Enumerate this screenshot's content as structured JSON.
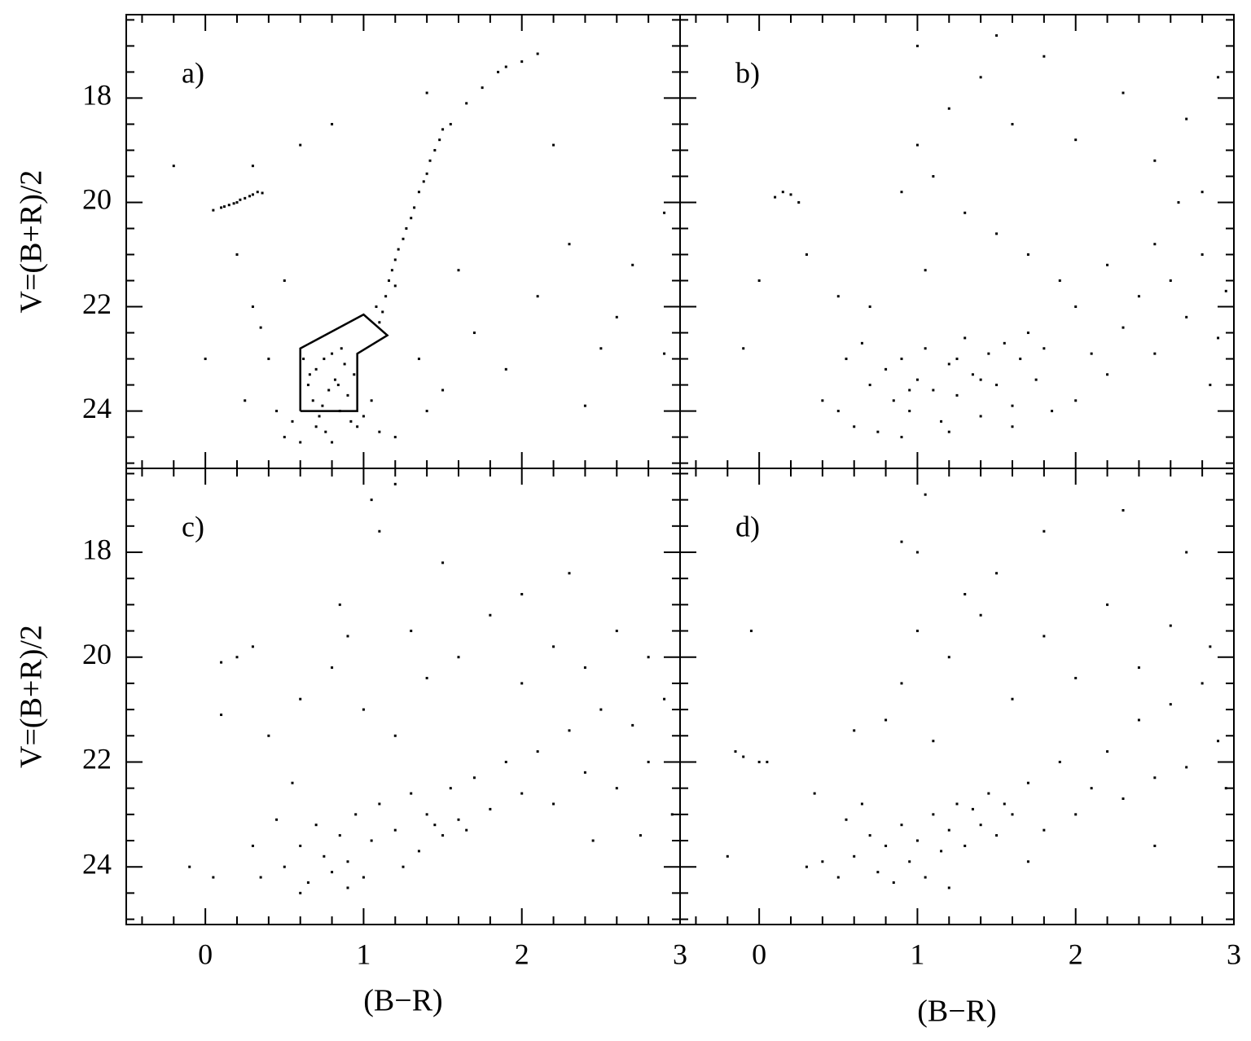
{
  "chart_data": [
    {
      "type": "scatter",
      "panel_label": "a)",
      "ylabel": "V=(B+R)/2",
      "xlim": [
        -0.5,
        3
      ],
      "ylim": [
        25.1,
        16.4
      ],
      "xticks": [
        0,
        1,
        2,
        3
      ],
      "yticks": [
        18,
        20,
        22,
        24
      ],
      "xminorticks": [
        -0.4,
        -0.2,
        0.2,
        0.4,
        0.6,
        0.8,
        1.2,
        1.4,
        1.6,
        1.8,
        2.2,
        2.4,
        2.6,
        2.8
      ],
      "yminorticks": [
        16.5,
        17,
        17.5,
        18.5,
        19,
        19.5,
        20.5,
        21,
        21.5,
        22.5,
        23,
        23.5,
        24.5,
        25
      ],
      "xtick_labels": false,
      "ytick_labels": true,
      "region": {
        "x": [
          0.6,
          0.6,
          1.0,
          1.15,
          0.96,
          0.96,
          0.6
        ],
        "y": [
          24.0,
          22.8,
          22.15,
          22.55,
          22.9,
          24.0,
          24.0
        ]
      },
      "series": [
        {
          "color": "#000000",
          "x": [
            0.05,
            0.1,
            0.15,
            0.2,
            0.22,
            0.25,
            0.28,
            0.3,
            0.33,
            0.36,
            0.12,
            0.18,
            1.12,
            1.14,
            1.16,
            1.18,
            1.2,
            1.22,
            1.25,
            1.27,
            1.3,
            1.32,
            1.35,
            1.38,
            1.4,
            1.42,
            1.45,
            1.48,
            1.5,
            1.55,
            1.65,
            1.75,
            1.85,
            1.9,
            2.0,
            2.1,
            1.1,
            1.08,
            1.2,
            0.62,
            0.65,
            0.68,
            0.7,
            0.72,
            0.75,
            0.78,
            0.8,
            0.82,
            0.85,
            0.88,
            0.9,
            0.92,
            0.7,
            0.76,
            0.66,
            0.74,
            0.84,
            0.86,
            0.94,
            0.96,
            1.0,
            1.05,
            0.55,
            0.5,
            0.45,
            1.1,
            1.2,
            0.6,
            0.8,
            0.2,
            0.3,
            0.35,
            0.4,
            0.25,
            0.0,
            -0.2,
            0.3,
            0.6,
            0.8,
            1.35,
            1.5,
            1.7,
            1.9,
            2.1,
            2.3,
            2.5,
            2.7,
            2.9,
            2.4,
            1.4,
            2.2,
            0.5,
            1.6,
            2.6,
            2.9,
            1.4
          ],
          "y": [
            20.15,
            20.1,
            20.05,
            20.0,
            19.95,
            19.92,
            19.88,
            19.85,
            19.8,
            19.82,
            20.08,
            20.02,
            22.1,
            21.8,
            21.5,
            21.3,
            21.1,
            20.9,
            20.7,
            20.5,
            20.3,
            20.1,
            19.8,
            19.6,
            19.45,
            19.2,
            19.0,
            18.8,
            18.6,
            18.5,
            18.1,
            17.8,
            17.5,
            17.4,
            17.3,
            17.15,
            22.3,
            22.0,
            21.6,
            23.0,
            23.5,
            23.8,
            23.2,
            24.1,
            23.0,
            23.6,
            22.9,
            23.4,
            24.0,
            23.1,
            23.7,
            24.2,
            24.3,
            24.4,
            23.3,
            23.9,
            23.5,
            22.8,
            23.3,
            24.3,
            24.1,
            23.8,
            24.2,
            24.5,
            24.0,
            24.4,
            24.5,
            24.6,
            24.6,
            21.0,
            22.0,
            22.4,
            23.0,
            23.8,
            23.0,
            19.3,
            19.3,
            18.9,
            18.5,
            23.0,
            23.6,
            22.5,
            23.2,
            21.8,
            20.8,
            22.8,
            21.2,
            20.2,
            23.9,
            17.9,
            18.9,
            21.5,
            21.3,
            22.2,
            22.9,
            24.0
          ]
        }
      ]
    },
    {
      "type": "scatter",
      "panel_label": "b)",
      "xlim": [
        -0.5,
        3
      ],
      "ylim": [
        25.1,
        16.4
      ],
      "xticks": [
        0,
        1,
        2,
        3
      ],
      "yticks": [
        18,
        20,
        22,
        24
      ],
      "xminorticks": [
        -0.4,
        -0.2,
        0.2,
        0.4,
        0.6,
        0.8,
        1.2,
        1.4,
        1.6,
        1.8,
        2.2,
        2.4,
        2.6,
        2.8
      ],
      "yminorticks": [
        16.5,
        17,
        17.5,
        18.5,
        19,
        19.5,
        20.5,
        21,
        21.5,
        22.5,
        23,
        23.5,
        24.5,
        25
      ],
      "xtick_labels": false,
      "ytick_labels": false,
      "series": [
        {
          "color": "#000000",
          "x": [
            0.7,
            0.8,
            0.85,
            0.9,
            0.95,
            1.0,
            1.05,
            1.1,
            1.15,
            1.2,
            1.25,
            1.3,
            1.35,
            1.4,
            1.45,
            1.5,
            1.55,
            1.6,
            1.65,
            1.7,
            1.75,
            1.8,
            1.85,
            0.6,
            0.5,
            0.4,
            0.55,
            0.65,
            0.75,
            0.9,
            1.2,
            1.6,
            2.0,
            2.1,
            2.2,
            2.3,
            2.4,
            2.5,
            2.6,
            2.7,
            2.8,
            2.9,
            2.95,
            2.65,
            2.8,
            2.5,
            2.2,
            2.0,
            1.9,
            1.7,
            1.5,
            1.3,
            1.1,
            1.0,
            0.9,
            1.2,
            1.4,
            1.6,
            1.8,
            2.0,
            2.3,
            2.5,
            2.7,
            2.9,
            1.0,
            1.5,
            0.1,
            0.15,
            0.2,
            0.25,
            0.0,
            -0.1,
            0.3,
            0.5,
            0.7,
            1.05,
            2.85,
            0.95,
            1.25,
            1.4
          ],
          "y": [
            23.5,
            23.2,
            23.8,
            23.0,
            24.0,
            23.4,
            22.8,
            23.6,
            24.2,
            23.1,
            23.7,
            22.6,
            23.3,
            24.1,
            22.9,
            23.5,
            22.7,
            23.9,
            23.0,
            22.5,
            23.4,
            22.8,
            24.0,
            24.3,
            24.0,
            23.8,
            23.0,
            22.7,
            24.4,
            24.5,
            24.4,
            24.3,
            23.8,
            22.9,
            23.3,
            22.4,
            21.8,
            22.9,
            21.5,
            22.2,
            21.0,
            22.6,
            21.7,
            20.0,
            19.8,
            20.8,
            21.2,
            22.0,
            21.5,
            21.0,
            20.6,
            20.2,
            19.5,
            18.9,
            19.8,
            18.2,
            17.6,
            18.5,
            17.2,
            18.8,
            17.9,
            19.2,
            18.4,
            17.6,
            17.0,
            16.8,
            19.9,
            19.8,
            19.85,
            20.0,
            21.5,
            22.8,
            21.0,
            21.8,
            22.0,
            21.3,
            23.5,
            23.6,
            23.0,
            23.4
          ]
        }
      ]
    },
    {
      "type": "scatter",
      "panel_label": "c)",
      "ylabel": "V=(B+R)/2",
      "xlabel": "(B−R)",
      "xlim": [
        -0.5,
        3
      ],
      "ylim": [
        25.1,
        16.4
      ],
      "xticks": [
        0,
        1,
        2,
        3
      ],
      "yticks": [
        18,
        20,
        22,
        24
      ],
      "xminorticks": [
        -0.4,
        -0.2,
        0.2,
        0.4,
        0.6,
        0.8,
        1.2,
        1.4,
        1.6,
        1.8,
        2.2,
        2.4,
        2.6,
        2.8
      ],
      "yminorticks": [
        16.5,
        17,
        17.5,
        18.5,
        19,
        19.5,
        20.5,
        21,
        21.5,
        22.5,
        23,
        23.5,
        24.5,
        25
      ],
      "xtick_labels": true,
      "ytick_labels": true,
      "series": [
        {
          "color": "#000000",
          "x": [
            0.5,
            0.6,
            0.65,
            0.7,
            0.75,
            0.8,
            0.85,
            0.9,
            0.95,
            1.0,
            1.05,
            1.1,
            1.2,
            1.3,
            1.35,
            1.4,
            1.5,
            1.55,
            1.6,
            1.7,
            1.8,
            1.9,
            2.0,
            2.1,
            2.2,
            2.3,
            2.4,
            2.5,
            2.6,
            2.7,
            2.8,
            2.9,
            2.95,
            2.75,
            2.45,
            0.35,
            0.3,
            0.45,
            0.55,
            0.4,
            0.6,
            0.8,
            0.9,
            1.0,
            1.2,
            1.4,
            1.3,
            1.6,
            1.8,
            2.0,
            2.2,
            2.4,
            2.6,
            2.8,
            2.0,
            2.3,
            1.5,
            1.1,
            1.05,
            1.2,
            0.85,
            0.1,
            0.2,
            0.3,
            0.05,
            -0.1,
            0.1,
            0.6,
            0.9,
            1.25,
            1.65,
            1.45
          ],
          "y": [
            24.0,
            23.6,
            24.3,
            23.2,
            23.8,
            24.1,
            23.4,
            23.9,
            23.0,
            24.2,
            23.5,
            22.8,
            23.3,
            22.6,
            23.7,
            23.0,
            23.4,
            22.5,
            23.1,
            22.3,
            22.9,
            22.0,
            22.6,
            21.8,
            22.8,
            21.4,
            22.2,
            21.0,
            22.5,
            21.3,
            22.0,
            20.8,
            23.0,
            23.4,
            23.5,
            24.2,
            23.6,
            23.1,
            22.4,
            21.5,
            20.8,
            20.2,
            19.6,
            21.0,
            21.5,
            20.4,
            19.5,
            20.0,
            19.2,
            20.5,
            19.8,
            20.2,
            19.5,
            20.0,
            18.8,
            18.4,
            18.2,
            17.6,
            17.0,
            16.7,
            19.0,
            20.1,
            20.0,
            19.8,
            24.2,
            24.0,
            21.1,
            24.5,
            24.4,
            24.0,
            23.3,
            23.2
          ]
        }
      ]
    },
    {
      "type": "scatter",
      "panel_label": "d)",
      "xlabel": "(B−R)",
      "xlim": [
        -0.5,
        3
      ],
      "ylim": [
        25.1,
        16.4
      ],
      "xticks": [
        0,
        1,
        2,
        3
      ],
      "yticks": [
        18,
        20,
        22,
        24
      ],
      "xminorticks": [
        -0.4,
        -0.2,
        0.2,
        0.4,
        0.6,
        0.8,
        1.2,
        1.4,
        1.6,
        1.8,
        2.2,
        2.4,
        2.6,
        2.8
      ],
      "yminorticks": [
        16.5,
        17,
        17.5,
        18.5,
        19,
        19.5,
        20.5,
        21,
        21.5,
        22.5,
        23,
        23.5,
        24.5,
        25
      ],
      "xtick_labels": true,
      "ytick_labels": false,
      "series": [
        {
          "color": "#000000",
          "x": [
            0.6,
            0.7,
            0.75,
            0.8,
            0.85,
            0.9,
            0.95,
            1.0,
            1.05,
            1.1,
            1.15,
            1.2,
            1.25,
            1.3,
            1.35,
            1.4,
            1.45,
            1.5,
            1.55,
            1.6,
            1.7,
            1.8,
            0.5,
            0.4,
            0.3,
            0.65,
            0.55,
            1.9,
            2.0,
            2.1,
            2.2,
            2.3,
            2.4,
            2.5,
            2.6,
            2.7,
            2.8,
            2.9,
            2.95,
            2.85,
            2.6,
            2.4,
            2.2,
            2.0,
            1.8,
            1.6,
            1.4,
            1.2,
            1.0,
            0.9,
            0.8,
            1.1,
            1.3,
            1.5,
            1.0,
            0.9,
            1.8,
            2.3,
            2.7,
            1.05,
            0.0,
            -0.1,
            0.05,
            -0.2,
            -0.15,
            -0.05,
            0.35,
            0.6,
            1.7,
            2.5,
            1.2
          ],
          "y": [
            23.8,
            23.4,
            24.1,
            23.6,
            24.3,
            23.2,
            23.9,
            23.5,
            24.2,
            23.0,
            23.7,
            23.3,
            22.8,
            23.6,
            22.9,
            23.2,
            22.6,
            23.4,
            22.8,
            23.0,
            22.4,
            23.3,
            24.2,
            23.9,
            24.0,
            22.8,
            23.1,
            22.0,
            23.0,
            22.5,
            21.8,
            22.7,
            21.2,
            22.3,
            20.9,
            22.1,
            20.5,
            21.6,
            22.5,
            19.8,
            19.4,
            20.2,
            19.0,
            20.4,
            19.6,
            20.8,
            19.2,
            20.0,
            19.5,
            20.5,
            21.2,
            21.6,
            18.8,
            18.4,
            18.0,
            17.8,
            17.6,
            17.2,
            18.0,
            16.9,
            22.0,
            21.9,
            22.0,
            23.8,
            21.8,
            19.5,
            22.6,
            21.4,
            23.9,
            23.6,
            24.4
          ]
        }
      ]
    }
  ]
}
